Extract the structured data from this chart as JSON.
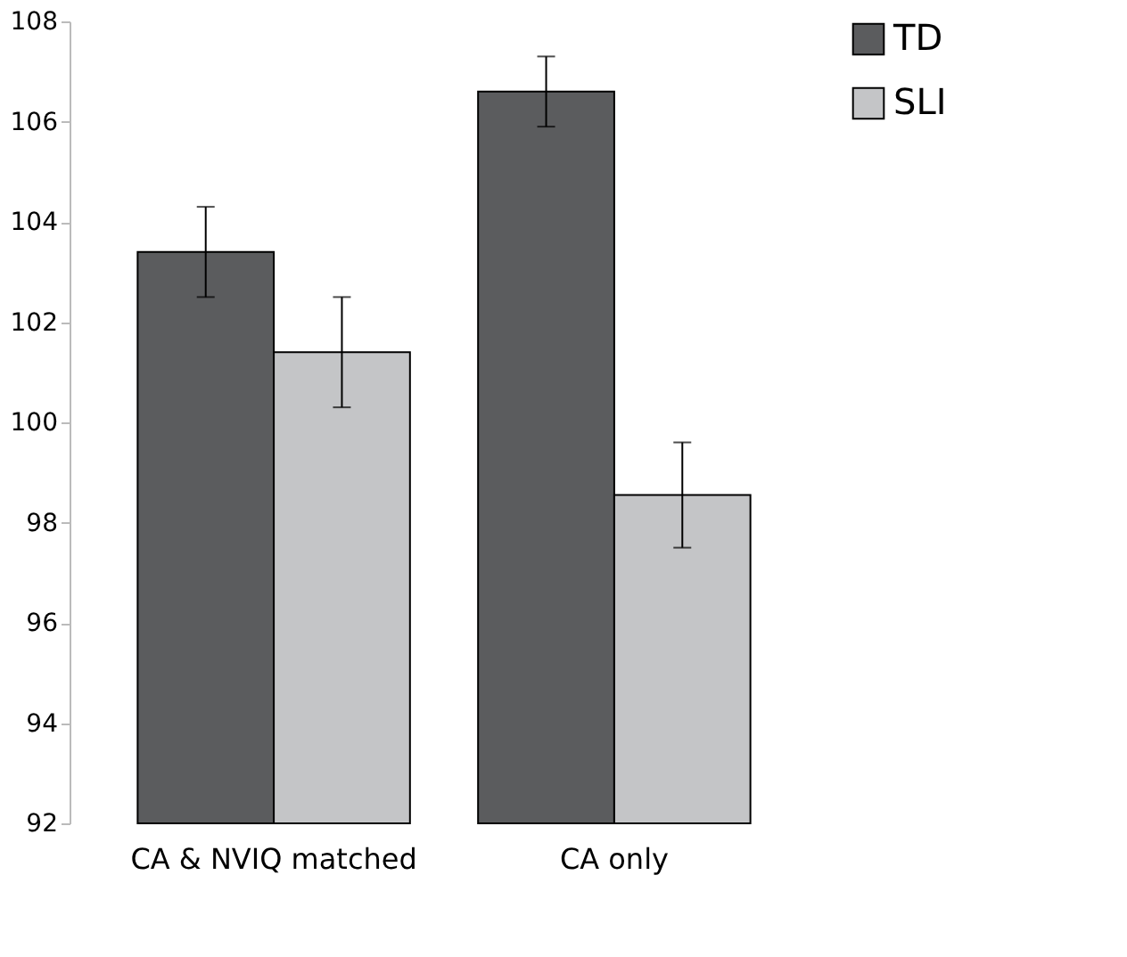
{
  "chart_data": {
    "type": "bar",
    "categories": [
      "CA & NVIQ matched",
      "CA only"
    ],
    "series": [
      {
        "name": "TD",
        "color": "#5b5c5e",
        "values": [
          103.4,
          106.6
        ],
        "errors": [
          0.9,
          0.7
        ]
      },
      {
        "name": "SLI",
        "color": "#c4c5c7",
        "values": [
          101.4,
          98.55
        ],
        "errors": [
          1.1,
          1.05
        ]
      }
    ],
    "ylim": [
      92,
      108
    ],
    "yticks": [
      92,
      94,
      96,
      98,
      100,
      102,
      104,
      106,
      108
    ],
    "grid": false,
    "legend": "right"
  }
}
